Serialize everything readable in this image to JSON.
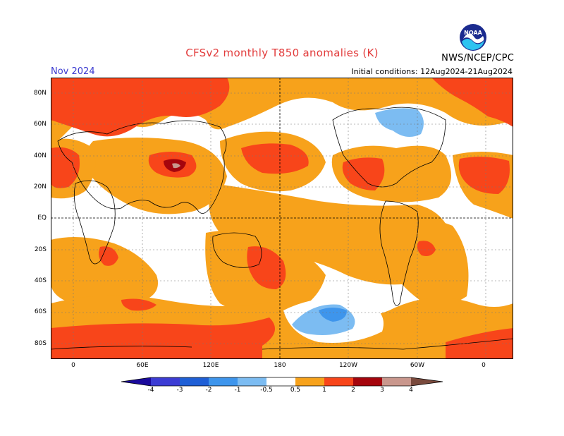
{
  "header": {
    "title": "CFSv2 monthly T850 anomalies (K)",
    "month": "Nov 2024",
    "initial_conditions": "Initial conditions: 12Aug2024-21Aug2024",
    "org": "NWS/NCEP/CPC",
    "logo_text": "NOAA"
  },
  "map": {
    "lat_labels": [
      "80N",
      "60N",
      "40N",
      "20N",
      "EQ",
      "20S",
      "40S",
      "60S",
      "80S"
    ],
    "lon_labels": [
      "0",
      "60E",
      "120E",
      "180",
      "120W",
      "60W",
      "0"
    ]
  },
  "colorbar": {
    "labels": [
      "-4",
      "-3",
      "-2",
      "-1",
      "-0.5",
      "0.5",
      "1",
      "2",
      "3",
      "4"
    ],
    "colors": {
      "lt_neg4": "#1a0a9c",
      "neg4_neg3": "#3c3cd4",
      "neg3_neg2": "#1f5fd6",
      "neg2_neg1": "#3e95ec",
      "neg1_neg05": "#7cbcf2",
      "neg05_05": "#ffffff",
      "p05_1": "#f7a21b",
      "p1_2": "#f8451a",
      "p2_3": "#a5050d",
      "p3_4": "#c9978d",
      "gt_4": "#7a4a3d"
    }
  }
}
